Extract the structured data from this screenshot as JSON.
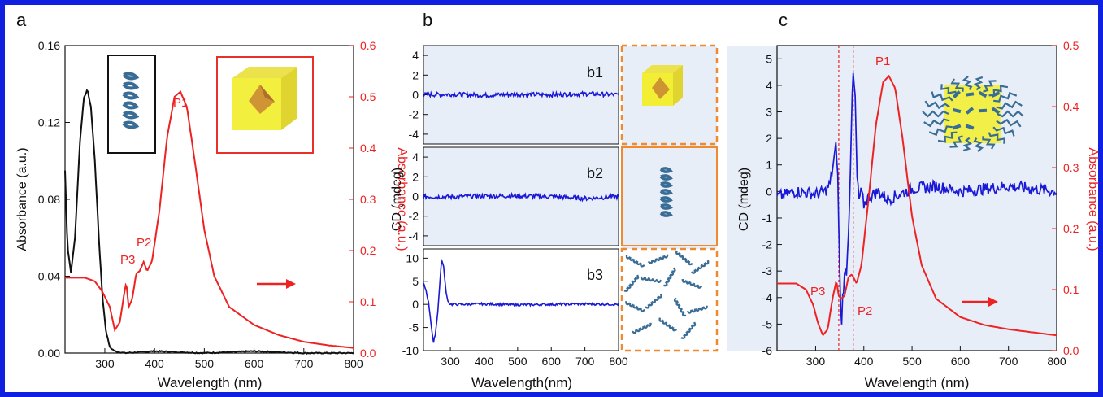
{
  "colors": {
    "black": "#111111",
    "red": "#ee2222",
    "blue": "#1a1ad6",
    "panel_bg": "#e8eef8",
    "orange": "#f08a30",
    "inset_red": "#e8302a",
    "cube_yellow": "#f2ee34",
    "helix": "#3a6d96",
    "frame": "#1020e0"
  },
  "panel_a": {
    "letter": "a",
    "xlabel": "Wavelength (nm)",
    "ylabel_left": "Absorbance (a.u.)",
    "ylabel_right": "Absorbance (a.u.)",
    "peak_labels": [
      "P1",
      "P2",
      "P3"
    ],
    "arrow_icon": "right-arrow-icon",
    "inset_icons": [
      "helix-icon",
      "cube-octahedron-icon"
    ]
  },
  "panel_b": {
    "letter": "b",
    "xlabel": "Wavelength(nm)",
    "ylabel": "CD (mdeg)",
    "subpanels": [
      "b1",
      "b2",
      "b3"
    ],
    "inset_icons": [
      "cube-octahedron-icon",
      "helix-icon",
      "helix-cluster-icon"
    ]
  },
  "panel_c": {
    "letter": "c",
    "xlabel": "Wavelength (nm)",
    "ylabel_left": "CD (mdeg)",
    "ylabel_right": "Absorbance (a.u.)",
    "peak_labels": [
      "P1",
      "P2",
      "P3"
    ],
    "arrow_icon": "right-arrow-icon",
    "inset_icons": [
      "helix-decorated-cube-icon"
    ]
  },
  "chart_data": [
    {
      "type": "line",
      "panel": "a",
      "xlabel": "Wavelength (nm)",
      "ylabel": "Absorbance (a.u.)",
      "y2label": "Absorbance (a.u.)",
      "xlim": [
        220,
        800
      ],
      "xticks": [
        "300",
        "400",
        "500",
        "600",
        "700",
        "800"
      ],
      "ylim": [
        0,
        0.16
      ],
      "yticks": [
        "0.00",
        "0.04",
        "0.08",
        "0.12",
        "0.16"
      ],
      "y2lim": [
        0,
        0.6
      ],
      "y2ticks": [
        "0.0",
        "0.1",
        "0.2",
        "0.3",
        "0.4",
        "0.5",
        "0.6"
      ],
      "series": [
        {
          "axis": "left",
          "color": "#111111",
          "x": [
            220,
            225,
            232,
            240,
            250,
            258,
            265,
            272,
            280,
            288,
            295,
            302,
            310,
            320,
            340,
            400,
            500,
            600,
            700,
            800
          ],
          "y": [
            0.095,
            0.055,
            0.042,
            0.06,
            0.11,
            0.133,
            0.137,
            0.128,
            0.1,
            0.06,
            0.03,
            0.012,
            0.003,
            0.001,
            0.0,
            0.001,
            0.0,
            0.001,
            0.0,
            0.0
          ]
        },
        {
          "axis": "right",
          "color": "#ee2222",
          "x": [
            220,
            260,
            280,
            295,
            310,
            320,
            330,
            338,
            343,
            348,
            355,
            363,
            370,
            378,
            385,
            395,
            410,
            425,
            440,
            452,
            465,
            480,
            500,
            520,
            550,
            600,
            650,
            700,
            750,
            800
          ],
          "y": [
            0.147,
            0.147,
            0.14,
            0.12,
            0.09,
            0.045,
            0.06,
            0.11,
            0.138,
            0.09,
            0.105,
            0.155,
            0.16,
            0.178,
            0.16,
            0.18,
            0.28,
            0.42,
            0.5,
            0.51,
            0.48,
            0.38,
            0.24,
            0.15,
            0.09,
            0.055,
            0.035,
            0.022,
            0.015,
            0.01
          ]
        }
      ],
      "annotations": [
        "P1",
        "P2",
        "P3"
      ]
    },
    {
      "type": "line",
      "panel": "b1",
      "xlim": [
        220,
        800
      ],
      "ylim": [
        -5,
        5
      ],
      "yticks": [
        "4",
        "2",
        "0",
        "-2",
        "-4"
      ],
      "series": [
        {
          "color": "#1a1ad6",
          "description_values": "noise around 0",
          "x": [
            220,
            300,
            400,
            500,
            600,
            700,
            800
          ],
          "y": [
            0,
            0.05,
            -0.05,
            0.05,
            0,
            0.1,
            0
          ]
        }
      ]
    },
    {
      "type": "line",
      "panel": "b2",
      "xlim": [
        220,
        800
      ],
      "ylim": [
        -5,
        5
      ],
      "yticks": [
        "4",
        "2",
        "0",
        "-2",
        "-4"
      ],
      "series": [
        {
          "color": "#1a1ad6",
          "x": [
            220,
            300,
            400,
            500,
            600,
            700,
            800
          ],
          "y": [
            0,
            -0.05,
            0.05,
            0.05,
            0,
            -0.2,
            0
          ]
        }
      ]
    },
    {
      "type": "line",
      "panel": "b3",
      "xlabel": "Wavelength(nm)",
      "ylabel": "CD (mdeg)",
      "xlim": [
        220,
        800
      ],
      "xticks": [
        "300",
        "400",
        "500",
        "600",
        "700",
        "800"
      ],
      "ylim": [
        -10,
        12
      ],
      "yticks": [
        "10",
        "5",
        "0",
        "-5",
        "-10"
      ],
      "series": [
        {
          "color": "#1a1ad6",
          "x": [
            220,
            228,
            236,
            244,
            250,
            256,
            262,
            268,
            274,
            280,
            288,
            296,
            305,
            320,
            400,
            500,
            600,
            700,
            800
          ],
          "y": [
            4.5,
            3,
            0,
            -5,
            -8.5,
            -6,
            -2,
            4,
            9.8,
            8,
            2,
            0.2,
            0,
            0,
            0.1,
            -0.1,
            0,
            0.1,
            0
          ]
        }
      ]
    },
    {
      "type": "line",
      "panel": "c",
      "xlabel": "Wavelength (nm)",
      "ylabel": "CD (mdeg)",
      "y2label": "Absorbance (a.u.)",
      "xlim": [
        220,
        800
      ],
      "xticks": [
        "300",
        "400",
        "500",
        "600",
        "700",
        "800"
      ],
      "ylim": [
        -6,
        5.5
      ],
      "yticks": [
        "5",
        "4",
        "3",
        "2",
        "1",
        "0",
        "-1",
        "-2",
        "-3",
        "-4",
        "-5",
        "-6"
      ],
      "y2lim": [
        0,
        0.5
      ],
      "y2ticks": [
        "0.0",
        "0.1",
        "0.2",
        "0.3",
        "0.4",
        "0.5"
      ],
      "vlines": [
        348,
        378
      ],
      "series": [
        {
          "axis": "left",
          "color": "#1a1ad6",
          "x": [
            220,
            260,
            300,
            320,
            330,
            338,
            343,
            346,
            350,
            353,
            356,
            360,
            365,
            370,
            375,
            378,
            382,
            386,
            390,
            395,
            400,
            410,
            430,
            450,
            500,
            550,
            600,
            650,
            700,
            750,
            800
          ],
          "y": [
            -0.2,
            0,
            -0.1,
            0,
            0.3,
            1.2,
            1.8,
            0.5,
            -3,
            -5.3,
            -4,
            -3.2,
            -2.9,
            -0.5,
            3,
            4.4,
            3.5,
            0.5,
            -0.3,
            0,
            -0.5,
            -0.2,
            0,
            -0.3,
            0.1,
            0.2,
            0,
            0.1,
            0.2,
            0.1,
            0
          ]
        },
        {
          "axis": "right",
          "color": "#ee2222",
          "x": [
            220,
            260,
            280,
            295,
            305,
            315,
            325,
            335,
            343,
            348,
            353,
            360,
            368,
            375,
            385,
            395,
            410,
            425,
            440,
            452,
            465,
            480,
            500,
            520,
            550,
            600,
            650,
            700,
            750,
            800
          ],
          "y": [
            0.11,
            0.11,
            0.1,
            0.075,
            0.045,
            0.025,
            0.035,
            0.085,
            0.115,
            0.09,
            0.085,
            0.09,
            0.12,
            0.125,
            0.11,
            0.14,
            0.25,
            0.37,
            0.44,
            0.45,
            0.43,
            0.35,
            0.22,
            0.14,
            0.085,
            0.055,
            0.042,
            0.035,
            0.03,
            0.025
          ]
        }
      ],
      "annotations": [
        "P1",
        "P2",
        "P3"
      ]
    }
  ]
}
